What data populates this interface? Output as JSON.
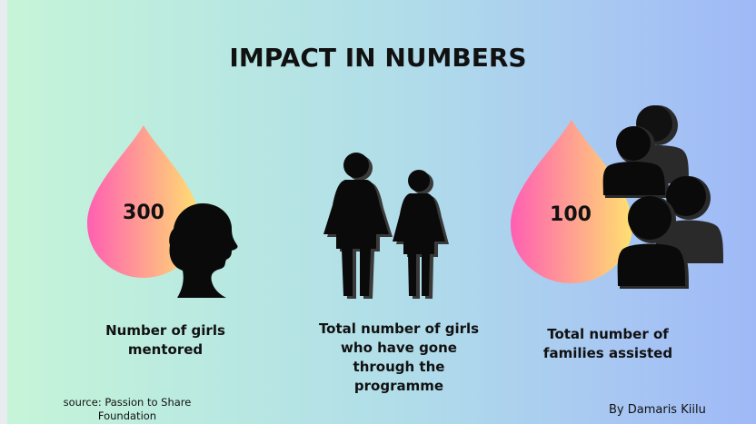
{
  "title": "IMPACT IN NUMBERS",
  "stats": [
    {
      "value": "300",
      "caption_lines": [
        "Number of girls",
        "mentored"
      ]
    },
    {
      "value": "",
      "caption_lines": [
        "Total number of girls",
        "who have gone",
        "through the",
        "programme"
      ]
    },
    {
      "value": "100",
      "caption_lines": [
        "Total number of",
        "families assisted"
      ]
    }
  ],
  "source_lines": [
    "source: Passion to Share",
    "Foundation"
  ],
  "byline": "By Damaris Kiilu",
  "icons": [
    "woman-head-silhouette-icon",
    "two-girls-icon",
    "family-group-icon"
  ],
  "colors": {
    "drop_start": "#ff5fb2",
    "drop_end": "#ffe070",
    "text": "#111111"
  }
}
